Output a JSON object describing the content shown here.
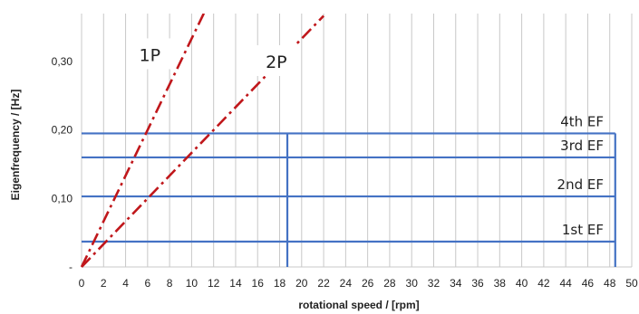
{
  "chart_data": {
    "type": "line",
    "xlabel": "rotational speed / [rpm]",
    "ylabel": "Eigenfrequency / [Hz]",
    "xlim": [
      0,
      50
    ],
    "ylim": [
      0,
      0.37
    ],
    "x_ticks": [
      "0",
      "2",
      "4",
      "6",
      "8",
      "10",
      "12",
      "14",
      "16",
      "18",
      "20",
      "22",
      "24",
      "26",
      "28",
      "30",
      "32",
      "34",
      "36",
      "38",
      "40",
      "42",
      "44",
      "46",
      "48",
      "50"
    ],
    "y_ticks": [
      {
        "value": 0,
        "label": "-"
      },
      {
        "value": 0.1,
        "label": "0,10"
      },
      {
        "value": 0.2,
        "label": "0,20"
      },
      {
        "value": 0.3,
        "label": "0,30"
      }
    ],
    "grid": "vertical",
    "series": [
      {
        "name": "1P",
        "color": "#c0171b",
        "style": "dash-dot",
        "x": [
          0,
          22
        ],
        "y": [
          0,
          0.3667
        ],
        "label_at": [
          6.2,
          0.31
        ]
      },
      {
        "name": "2P",
        "color": "#c0171b",
        "style": "dash-dot",
        "x": [
          0,
          22
        ],
        "y": [
          0,
          0.7333
        ],
        "label_at": [
          17.7,
          0.3
        ]
      }
    ],
    "eigenfrequencies": [
      {
        "name": "1st EF",
        "value": 0.037
      },
      {
        "name": "2nd EF",
        "value": 0.103
      },
      {
        "name": "3rd EF",
        "value": 0.16
      },
      {
        "name": "4th EF",
        "value": 0.195
      }
    ],
    "ef_x_range": [
      0,
      48.5
    ],
    "operating_range_lines_x": [
      18.7,
      48.5
    ],
    "ef_color": "#4472c4"
  }
}
